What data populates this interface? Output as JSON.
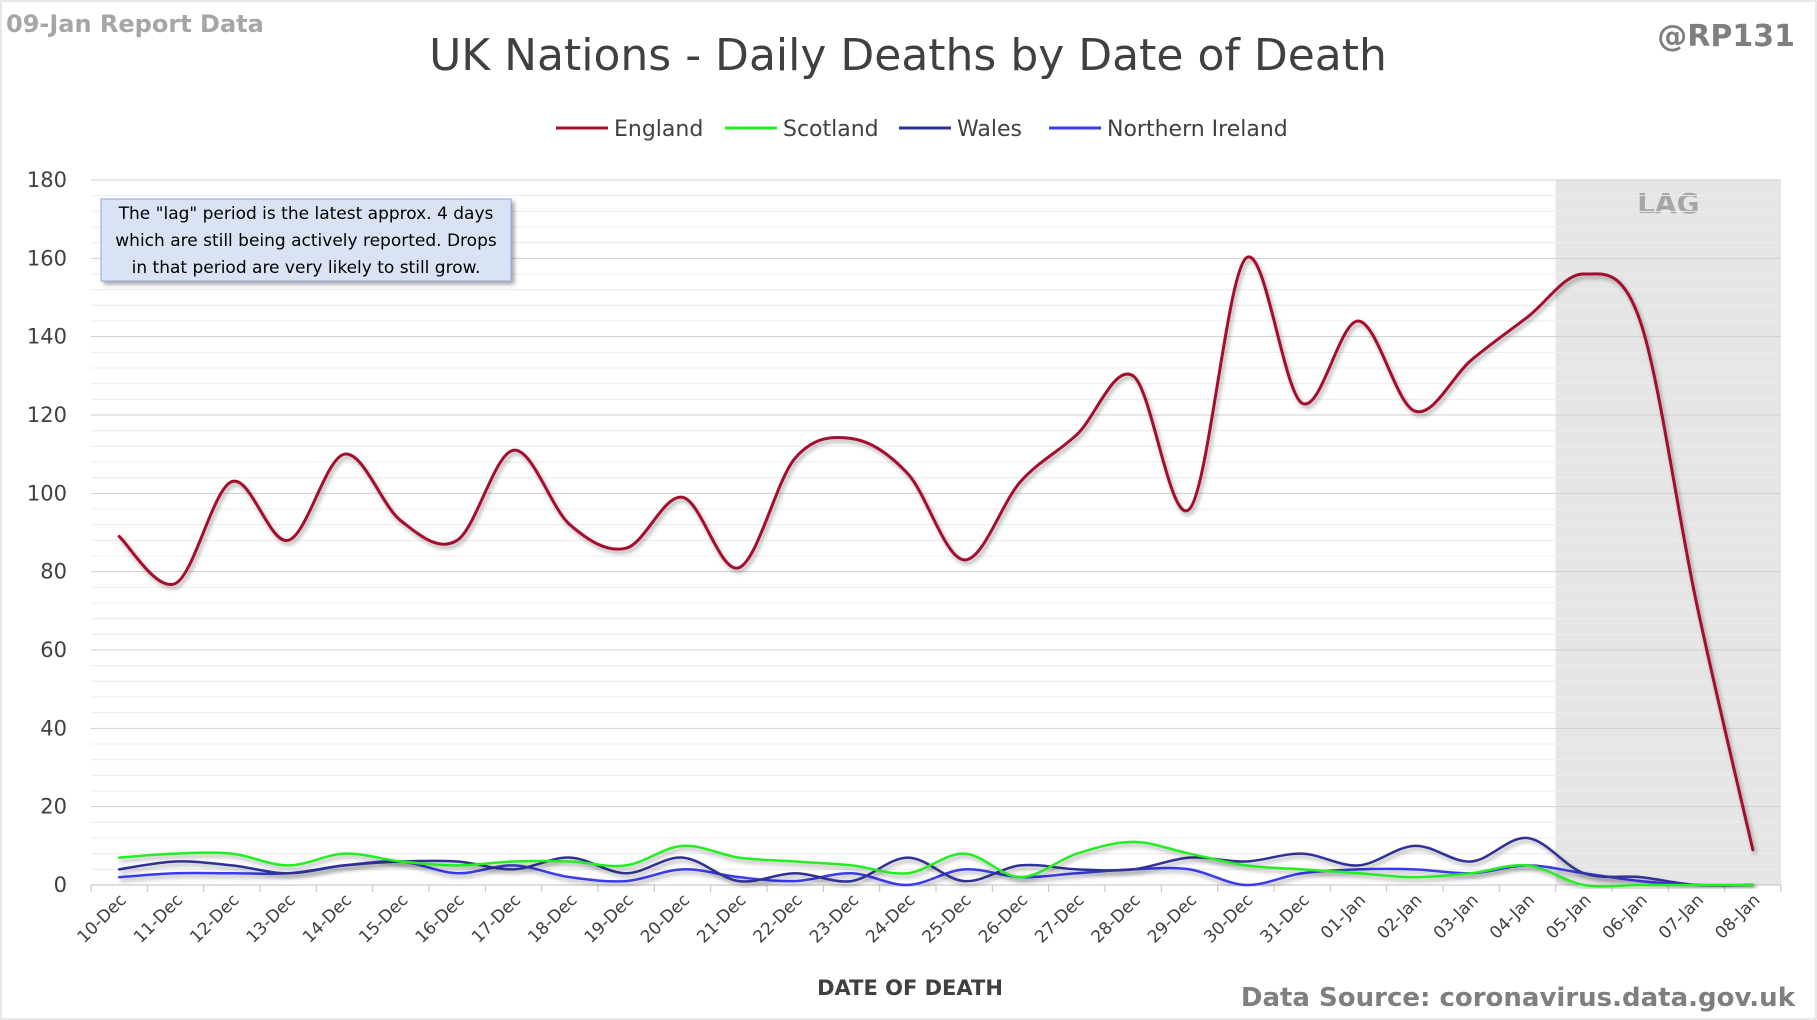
{
  "header": {
    "report_label": "09-Jan Report Data",
    "handle": "@RP131"
  },
  "footer": {
    "source": "Data Source: coronavirus.data.gov.uk"
  },
  "note": {
    "lines": [
      "The \"lag\" period is the latest approx. 4 days",
      "which are still being actively reported.  Drops",
      "in that period are very likely to still grow."
    ]
  },
  "chart_data": {
    "type": "line",
    "title": "UK Nations - Daily Deaths by Date of Death",
    "xlabel": "DATE OF DEATH",
    "ylabel": "",
    "ylim": [
      0,
      180
    ],
    "y_ticks": [
      0,
      20,
      40,
      60,
      80,
      100,
      120,
      140,
      160,
      180
    ],
    "grid": true,
    "smooth": true,
    "legend_position": "top",
    "categories": [
      "10-Dec",
      "11-Dec",
      "12-Dec",
      "13-Dec",
      "14-Dec",
      "15-Dec",
      "16-Dec",
      "17-Dec",
      "18-Dec",
      "19-Dec",
      "20-Dec",
      "21-Dec",
      "22-Dec",
      "23-Dec",
      "24-Dec",
      "25-Dec",
      "26-Dec",
      "27-Dec",
      "28-Dec",
      "29-Dec",
      "30-Dec",
      "31-Dec",
      "01-Jan",
      "02-Jan",
      "03-Jan",
      "04-Jan",
      "05-Jan",
      "06-Jan",
      "07-Jan",
      "08-Jan"
    ],
    "series": [
      {
        "name": "England",
        "color": "#a50f2d",
        "values": [
          89,
          77,
          103,
          88,
          110,
          93,
          88,
          111,
          92,
          86,
          99,
          81,
          109,
          114,
          105,
          83,
          103,
          115,
          130,
          96,
          160,
          123,
          144,
          121,
          134,
          145,
          156,
          144,
          72,
          9
        ]
      },
      {
        "name": "Scotland",
        "color": "#22ee22",
        "values": [
          7,
          8,
          8,
          5,
          8,
          6,
          5,
          6,
          6,
          5,
          10,
          7,
          6,
          5,
          3,
          8,
          2,
          8,
          11,
          8,
          5,
          4,
          3,
          2,
          3,
          5,
          0,
          0,
          0,
          0
        ]
      },
      {
        "name": "Wales",
        "color": "#2e3192",
        "values": [
          4,
          6,
          5,
          3,
          5,
          6,
          6,
          4,
          7,
          3,
          7,
          1,
          3,
          1,
          7,
          1,
          5,
          4,
          4,
          7,
          6,
          8,
          5,
          10,
          6,
          12,
          3,
          2,
          0,
          0
        ]
      },
      {
        "name": "Northern Ireland",
        "color": "#3a3aee",
        "values": [
          2,
          3,
          3,
          3,
          5,
          6,
          3,
          5,
          2,
          1,
          4,
          2,
          1,
          3,
          0,
          4,
          2,
          3,
          4,
          4,
          0,
          3,
          4,
          4,
          3,
          5,
          3,
          1,
          0,
          0
        ]
      }
    ],
    "shaded_region": {
      "label": "LAG",
      "from": "05-Jan",
      "to": "08-Jan",
      "color": "#e6e6e6"
    }
  }
}
